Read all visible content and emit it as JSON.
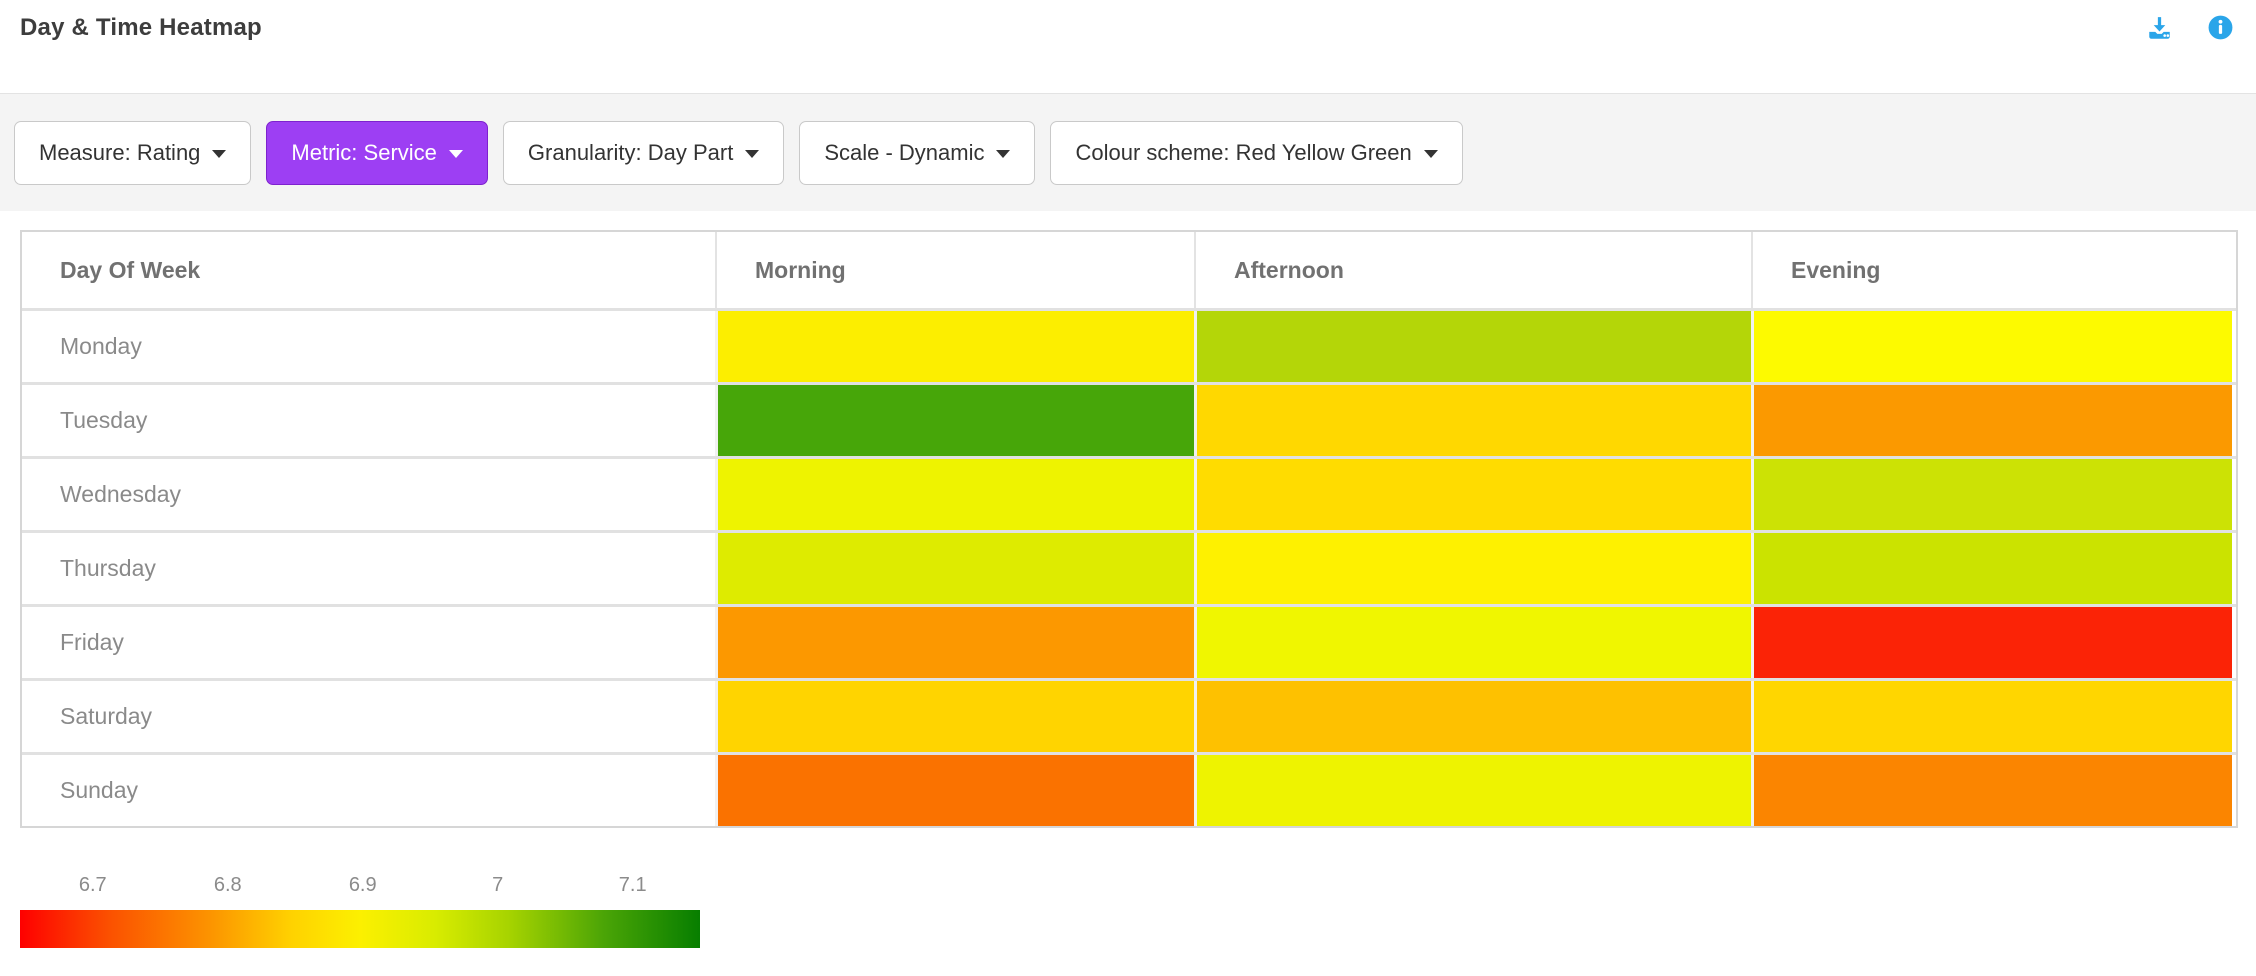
{
  "header": {
    "title": "Day & Time Heatmap",
    "icon_color": "#2aa5e9",
    "icons": [
      {
        "name": "download-icon"
      },
      {
        "name": "info-icon"
      }
    ]
  },
  "toolbar": {
    "active_bg": "#9d3ff3",
    "buttons": [
      {
        "id": "measure",
        "label": "Measure: Rating",
        "active": false
      },
      {
        "id": "metric",
        "label": "Metric: Service",
        "active": true
      },
      {
        "id": "granularity",
        "label": "Granularity: Day Part",
        "active": false
      },
      {
        "id": "scale",
        "label": "Scale - Dynamic",
        "active": false
      },
      {
        "id": "colour-scheme",
        "label": "Colour scheme: Red Yellow Green",
        "active": false
      }
    ]
  },
  "chart_data": {
    "type": "heatmap",
    "title": "Day & Time Heatmap",
    "measure": "Rating",
    "metric": "Service",
    "row_header": "Day Of Week",
    "columns": [
      "Morning",
      "Afternoon",
      "Evening"
    ],
    "rows": [
      "Monday",
      "Tuesday",
      "Wednesday",
      "Thursday",
      "Friday",
      "Saturday",
      "Sunday"
    ],
    "cell_colors": [
      [
        "#fcee00",
        "#b4d608",
        "#fdfa00"
      ],
      [
        "#47a609",
        "#ffd800",
        "#fb9900"
      ],
      [
        "#eef300",
        "#ffdc00",
        "#cce205"
      ],
      [
        "#deeb00",
        "#fef100",
        "#cbe300"
      ],
      [
        "#fc9800",
        "#f0f600",
        "#fb2306"
      ],
      [
        "#ffd400",
        "#fec100",
        "#ffd600"
      ],
      [
        "#fa7200",
        "#eef300",
        "#fb8500"
      ]
    ],
    "estimated_values": [
      [
        6.9,
        6.97,
        6.9
      ],
      [
        7.06,
        6.86,
        6.81
      ],
      [
        6.91,
        6.87,
        6.95
      ],
      [
        6.93,
        6.9,
        6.95
      ],
      [
        6.81,
        6.92,
        6.68
      ],
      [
        6.86,
        6.84,
        6.86
      ],
      [
        6.77,
        6.92,
        6.79
      ]
    ],
    "legend": {
      "ticks": [
        "6.7",
        "6.8",
        "6.9",
        "7",
        "7.1"
      ],
      "tick_positions_pct": [
        10.7,
        30.55,
        50.4,
        70.25,
        90.1
      ],
      "scale_min": 6.65,
      "scale_max": 7.15,
      "gradient_stops": [
        "#fe0000 0%",
        "#fb5000 13%",
        "#fc9400 28%",
        "#ffd200 40%",
        "#fcf000 50%",
        "#d9ec00 61%",
        "#a6d300 72%",
        "#4aa406 86%",
        "#077e00 100%"
      ]
    }
  }
}
